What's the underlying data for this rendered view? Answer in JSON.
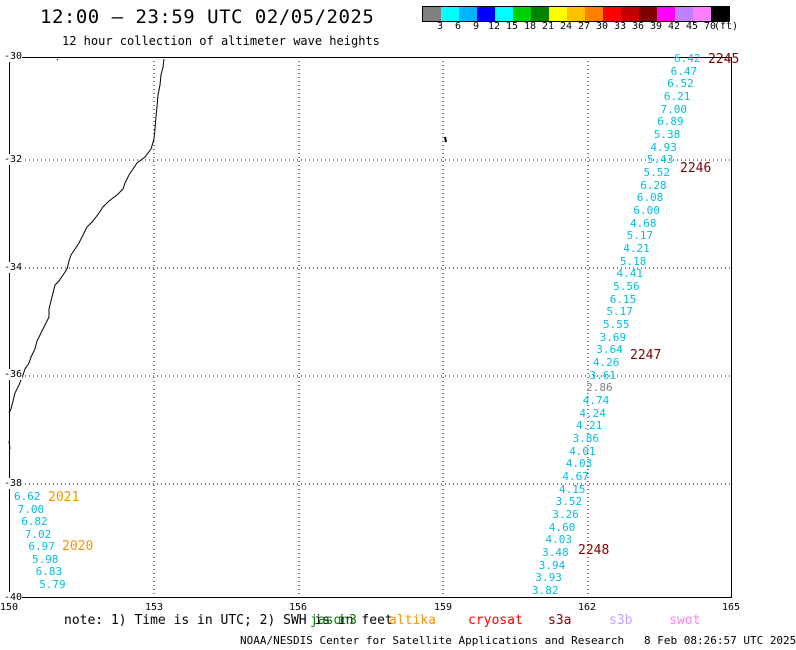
{
  "header": {
    "title": "12:00 – 23:59 UTC 02/05/2025",
    "subtitle": "12 hour collection of altimeter wave heights"
  },
  "colorbar": {
    "colors": [
      "#808080",
      "#00ffff",
      "#00b4ff",
      "#0000ff",
      "#00ffff",
      "#00d000",
      "#008000",
      "#ffff00",
      "#ffc000",
      "#ff8000",
      "#ff0000",
      "#c00000",
      "#800000",
      "#ff00ff",
      "#c080ff",
      "#ff80ff",
      "#000000"
    ],
    "labels": [
      "3",
      "6",
      "9",
      "12",
      "15",
      "18",
      "21",
      "24",
      "27",
      "30",
      "33",
      "36",
      "39",
      "42",
      "45",
      "70",
      "(ft)"
    ]
  },
  "axes": {
    "y_labels": [
      "-30",
      "-32",
      "-34",
      "-36",
      "-38",
      "-40"
    ],
    "x_labels": [
      "150",
      "153",
      "156",
      "159",
      "162",
      "165"
    ]
  },
  "track_labels": [
    {
      "text": "2245",
      "color": "#800000"
    },
    {
      "text": "2246",
      "color": "#800000"
    },
    {
      "text": "2247",
      "color": "#800000"
    },
    {
      "text": "2248",
      "color": "#800000"
    },
    {
      "text": "2021",
      "color": "#ff9000"
    },
    {
      "text": "2020",
      "color": "#ff9000"
    }
  ],
  "wave_heights_right": [
    "6.42",
    "6.47",
    "6.52",
    "6.21",
    "7.00",
    "6.89",
    "5.38",
    "4.93",
    "5.43",
    "5.52",
    "6.28",
    "6.08",
    "6.00",
    "4.68",
    "5.17",
    "4.21",
    "5.18",
    "4.41",
    "5.56",
    "6.15",
    "5.17",
    "5.55",
    "3.69",
    "3.64",
    "4.26",
    "3.61",
    "2.86",
    "4.74",
    "4.24",
    "4.21",
    "3.86",
    "4.01",
    "4.03",
    "4.67",
    "4.15",
    "3.52",
    "3.26",
    "4.60",
    "4.03",
    "3.48",
    "3.94",
    "3.93",
    "3.82"
  ],
  "wave_heights_left": [
    "6.62",
    "7.00",
    "6.82",
    "7.02",
    "6.97",
    "5.98",
    "6.83",
    "5.79"
  ],
  "footer": {
    "note": "note: 1) Time is in UTC; 2) SWH is in feet",
    "satellites": [
      {
        "name": "jason3",
        "color": "#008000"
      },
      {
        "name": "altika",
        "color": "#ff9000"
      },
      {
        "name": "cryosat",
        "color": "#ff0000"
      },
      {
        "name": "s3a",
        "color": "#800000"
      },
      {
        "name": "s3b",
        "color": "#c0a0ff"
      },
      {
        "name": "swot",
        "color": "#ff80ff"
      }
    ],
    "credits": "NOAA/NESDIS Center for Satellite Applications and Research",
    "timestamp": "8 Feb 08:26:57 UTC 2025"
  }
}
